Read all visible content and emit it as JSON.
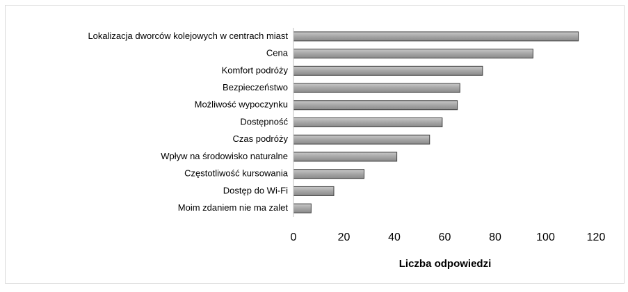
{
  "chart_data": {
    "type": "barh",
    "x_label": "Liczba odpowiedzi",
    "categories": [
      "Lokalizacja dworców kolejowych w centrach miast",
      "Cena",
      "Komfort podróży",
      "Bezpieczeństwo",
      "Możliwość wypoczynku",
      "Dostępność",
      "Czas podróży",
      "Wpływ na środowisko naturalne",
      "Częstotliwość kursowania",
      "Dostęp do Wi-Fi",
      "Moim zdaniem nie ma zalet"
    ],
    "values": [
      113,
      95,
      75,
      66,
      65,
      59,
      54,
      41,
      28,
      16,
      7
    ],
    "color": "#a6a6a6",
    "xlim": [
      0,
      120
    ],
    "xticks": [
      0,
      20,
      40,
      60,
      80,
      100,
      120
    ]
  }
}
